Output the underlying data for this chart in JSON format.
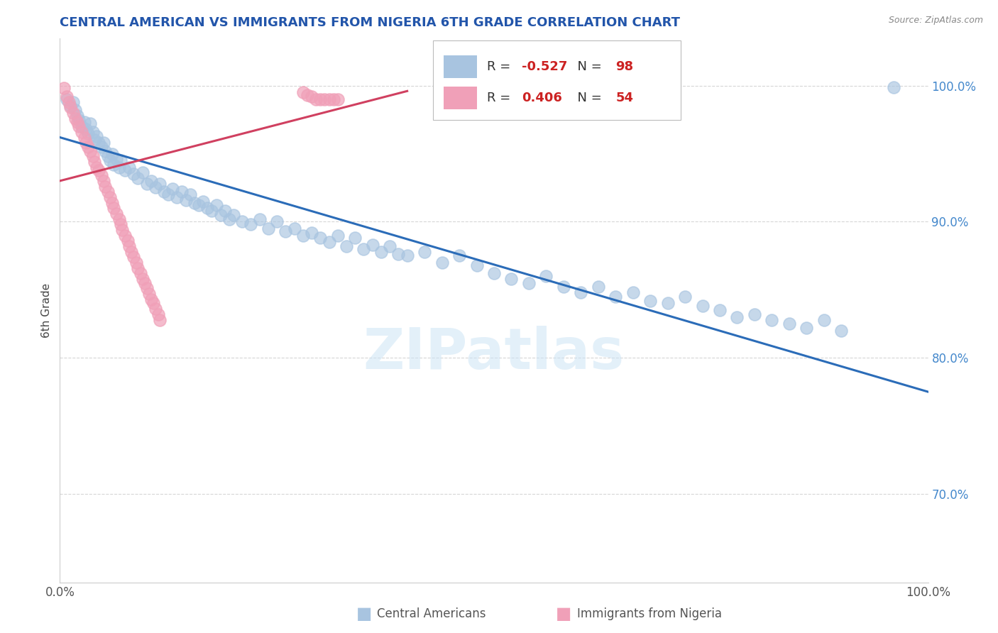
{
  "title": "CENTRAL AMERICAN VS IMMIGRANTS FROM NIGERIA 6TH GRADE CORRELATION CHART",
  "source": "Source: ZipAtlas.com",
  "ylabel": "6th Grade",
  "xlim": [
    0.0,
    1.0
  ],
  "ylim": [
    0.635,
    1.035
  ],
  "yticks": [
    0.7,
    0.8,
    0.9,
    1.0
  ],
  "ytick_labels": [
    "70.0%",
    "80.0%",
    "90.0%",
    "100.0%"
  ],
  "xticks": [
    0.0,
    1.0
  ],
  "xtick_labels": [
    "0.0%",
    "100.0%"
  ],
  "legend_labels": [
    "Central Americans",
    "Immigrants from Nigeria"
  ],
  "R_blue": "-0.527",
  "N_blue": "98",
  "R_pink": "0.406",
  "N_pink": "54",
  "blue_color": "#a8c4e0",
  "pink_color": "#f0a0b8",
  "blue_line_color": "#2b6cb8",
  "pink_line_color": "#d04060",
  "watermark": "ZIPatlas",
  "title_color": "#2255aa",
  "blue_scatter": [
    [
      0.008,
      0.99
    ],
    [
      0.012,
      0.985
    ],
    [
      0.015,
      0.988
    ],
    [
      0.018,
      0.982
    ],
    [
      0.02,
      0.978
    ],
    [
      0.022,
      0.975
    ],
    [
      0.025,
      0.97
    ],
    [
      0.028,
      0.973
    ],
    [
      0.03,
      0.968
    ],
    [
      0.032,
      0.965
    ],
    [
      0.035,
      0.972
    ],
    [
      0.038,
      0.966
    ],
    [
      0.04,
      0.96
    ],
    [
      0.042,
      0.963
    ],
    [
      0.045,
      0.958
    ],
    [
      0.048,
      0.955
    ],
    [
      0.05,
      0.958
    ],
    [
      0.052,
      0.952
    ],
    [
      0.055,
      0.948
    ],
    [
      0.058,
      0.945
    ],
    [
      0.06,
      0.95
    ],
    [
      0.062,
      0.942
    ],
    [
      0.065,
      0.946
    ],
    [
      0.068,
      0.94
    ],
    [
      0.07,
      0.945
    ],
    [
      0.075,
      0.938
    ],
    [
      0.08,
      0.94
    ],
    [
      0.085,
      0.935
    ],
    [
      0.09,
      0.932
    ],
    [
      0.095,
      0.936
    ],
    [
      0.1,
      0.928
    ],
    [
      0.105,
      0.93
    ],
    [
      0.11,
      0.925
    ],
    [
      0.115,
      0.928
    ],
    [
      0.12,
      0.922
    ],
    [
      0.125,
      0.92
    ],
    [
      0.13,
      0.924
    ],
    [
      0.135,
      0.918
    ],
    [
      0.14,
      0.922
    ],
    [
      0.145,
      0.916
    ],
    [
      0.15,
      0.92
    ],
    [
      0.155,
      0.914
    ],
    [
      0.16,
      0.912
    ],
    [
      0.165,
      0.915
    ],
    [
      0.17,
      0.91
    ],
    [
      0.175,
      0.908
    ],
    [
      0.18,
      0.912
    ],
    [
      0.185,
      0.905
    ],
    [
      0.19,
      0.908
    ],
    [
      0.195,
      0.902
    ],
    [
      0.2,
      0.905
    ],
    [
      0.21,
      0.9
    ],
    [
      0.22,
      0.898
    ],
    [
      0.23,
      0.902
    ],
    [
      0.24,
      0.895
    ],
    [
      0.25,
      0.9
    ],
    [
      0.26,
      0.893
    ],
    [
      0.27,
      0.895
    ],
    [
      0.28,
      0.89
    ],
    [
      0.29,
      0.892
    ],
    [
      0.3,
      0.888
    ],
    [
      0.31,
      0.885
    ],
    [
      0.32,
      0.89
    ],
    [
      0.33,
      0.882
    ],
    [
      0.34,
      0.888
    ],
    [
      0.35,
      0.88
    ],
    [
      0.36,
      0.883
    ],
    [
      0.37,
      0.878
    ],
    [
      0.38,
      0.882
    ],
    [
      0.39,
      0.876
    ],
    [
      0.4,
      0.875
    ],
    [
      0.42,
      0.878
    ],
    [
      0.44,
      0.87
    ],
    [
      0.46,
      0.875
    ],
    [
      0.48,
      0.868
    ],
    [
      0.5,
      0.862
    ],
    [
      0.52,
      0.858
    ],
    [
      0.54,
      0.855
    ],
    [
      0.56,
      0.86
    ],
    [
      0.58,
      0.852
    ],
    [
      0.6,
      0.848
    ],
    [
      0.62,
      0.852
    ],
    [
      0.64,
      0.845
    ],
    [
      0.66,
      0.848
    ],
    [
      0.68,
      0.842
    ],
    [
      0.7,
      0.84
    ],
    [
      0.72,
      0.845
    ],
    [
      0.74,
      0.838
    ],
    [
      0.76,
      0.835
    ],
    [
      0.78,
      0.83
    ],
    [
      0.8,
      0.832
    ],
    [
      0.82,
      0.828
    ],
    [
      0.84,
      0.825
    ],
    [
      0.86,
      0.822
    ],
    [
      0.88,
      0.828
    ],
    [
      0.9,
      0.82
    ],
    [
      0.96,
      0.999
    ]
  ],
  "pink_scatter": [
    [
      0.005,
      0.998
    ],
    [
      0.008,
      0.992
    ],
    [
      0.01,
      0.988
    ],
    [
      0.012,
      0.984
    ],
    [
      0.015,
      0.98
    ],
    [
      0.018,
      0.976
    ],
    [
      0.02,
      0.973
    ],
    [
      0.022,
      0.97
    ],
    [
      0.025,
      0.966
    ],
    [
      0.028,
      0.962
    ],
    [
      0.03,
      0.958
    ],
    [
      0.032,
      0.955
    ],
    [
      0.035,
      0.952
    ],
    [
      0.038,
      0.948
    ],
    [
      0.04,
      0.944
    ],
    [
      0.042,
      0.94
    ],
    [
      0.045,
      0.938
    ],
    [
      0.048,
      0.934
    ],
    [
      0.05,
      0.93
    ],
    [
      0.052,
      0.926
    ],
    [
      0.055,
      0.922
    ],
    [
      0.058,
      0.918
    ],
    [
      0.06,
      0.914
    ],
    [
      0.062,
      0.91
    ],
    [
      0.065,
      0.906
    ],
    [
      0.068,
      0.902
    ],
    [
      0.07,
      0.898
    ],
    [
      0.072,
      0.894
    ],
    [
      0.075,
      0.89
    ],
    [
      0.078,
      0.886
    ],
    [
      0.08,
      0.882
    ],
    [
      0.082,
      0.878
    ],
    [
      0.085,
      0.874
    ],
    [
      0.088,
      0.87
    ],
    [
      0.09,
      0.866
    ],
    [
      0.093,
      0.862
    ],
    [
      0.095,
      0.858
    ],
    [
      0.098,
      0.855
    ],
    [
      0.1,
      0.851
    ],
    [
      0.103,
      0.847
    ],
    [
      0.105,
      0.843
    ],
    [
      0.108,
      0.84
    ],
    [
      0.11,
      0.836
    ],
    [
      0.113,
      0.832
    ],
    [
      0.115,
      0.828
    ],
    [
      0.28,
      0.995
    ],
    [
      0.285,
      0.993
    ],
    [
      0.29,
      0.992
    ],
    [
      0.295,
      0.99
    ],
    [
      0.3,
      0.99
    ],
    [
      0.305,
      0.99
    ],
    [
      0.31,
      0.99
    ],
    [
      0.315,
      0.99
    ],
    [
      0.32,
      0.99
    ]
  ],
  "blue_trendline_x": [
    0.0,
    1.0
  ],
  "blue_trendline_y": [
    0.962,
    0.775
  ],
  "pink_trendline_x": [
    0.0,
    0.4
  ],
  "pink_trendline_y": [
    0.93,
    0.996
  ]
}
